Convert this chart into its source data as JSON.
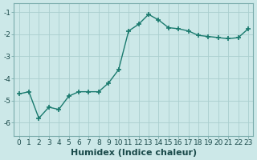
{
  "x": [
    0,
    1,
    2,
    3,
    4,
    5,
    6,
    7,
    8,
    9,
    10,
    11,
    12,
    13,
    14,
    15,
    16,
    17,
    18,
    19,
    20,
    21,
    22,
    23
  ],
  "y": [
    -4.7,
    -4.6,
    -5.8,
    -5.3,
    -5.4,
    -4.8,
    -4.6,
    -4.6,
    -4.6,
    -4.2,
    -3.6,
    -1.85,
    -1.55,
    -1.1,
    -1.35,
    -1.7,
    -1.75,
    -1.85,
    -2.05,
    -2.1,
    -2.15,
    -2.2,
    -2.15,
    -1.75
  ],
  "line_color": "#1a7a6e",
  "marker": "+",
  "markersize": 4,
  "markeredgewidth": 1.2,
  "linewidth": 1.0,
  "bg_color": "#cce8e8",
  "grid_color": "#aacece",
  "xlabel": "Humidex (Indice chaleur)",
  "xlabel_fontsize": 8,
  "tick_fontsize": 6.5,
  "ylim": [
    -6.6,
    -0.6
  ],
  "xlim": [
    -0.5,
    23.5
  ],
  "yticks": [
    -6,
    -5,
    -4,
    -3,
    -2,
    -1
  ],
  "figsize": [
    3.2,
    2.0
  ],
  "dpi": 100,
  "spine_color": "#7aacac",
  "text_color": "#1a4a4a"
}
